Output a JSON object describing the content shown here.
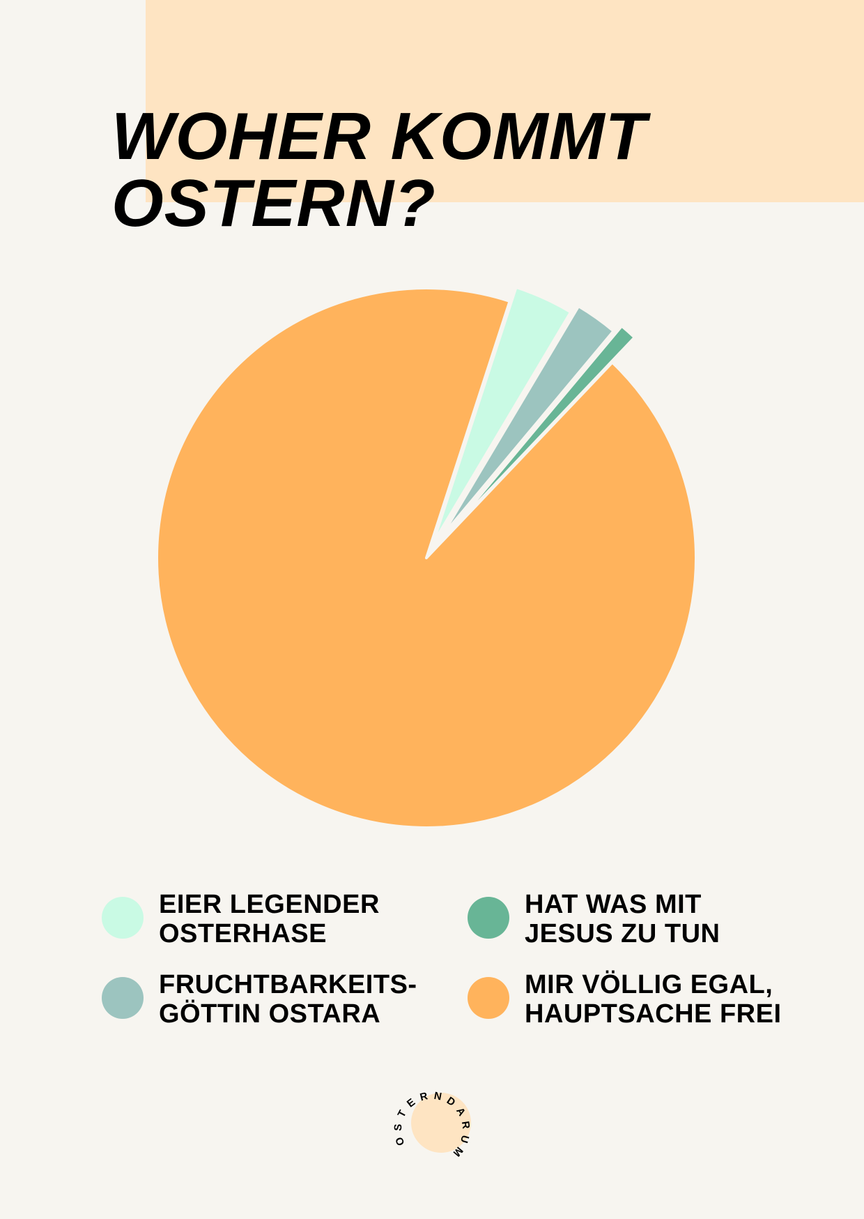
{
  "title": {
    "line1": "WOHER KOMMT",
    "line2": "OSTERN?"
  },
  "colors": {
    "background": "#f7f5f0",
    "accent": "#fee4c2",
    "mint": "#c9fae4",
    "sage": "#9cc4bf",
    "green": "#68b596",
    "orange": "#ffb35c"
  },
  "chart_data": {
    "type": "pie",
    "exploded": true,
    "slices": [
      {
        "label": "EIER LEGENDER\nOSTERHASE",
        "value": 3.5,
        "color": "#c9fae4"
      },
      {
        "label": "FRUCHTBARKEITS-\nGÖTTIN OSTARA",
        "value": 2.5,
        "color": "#9cc4bf"
      },
      {
        "label": "HAT WAS MIT\nJESUS ZU TUN",
        "value": 1.0,
        "color": "#68b596"
      },
      {
        "label": "MIR VÖLLIG EGAL,\nHAUPTSACHE FREI",
        "value": 91.5,
        "color": "#ffb35c"
      }
    ]
  },
  "legend": [
    {
      "text": "EIER LEGENDER\nOSTERHASE",
      "color": "#c9fae4"
    },
    {
      "text": "HAT WAS MIT\nJESUS ZU TUN",
      "color": "#68b596"
    },
    {
      "text": "FRUCHTBARKEITS-\nGÖTTIN OSTARA",
      "color": "#9cc4bf"
    },
    {
      "text": "MIR VÖLLIG EGAL,\nHAUPTSACHE FREI",
      "color": "#ffb35c"
    }
  ],
  "logo": {
    "text": "OSTERN DARUM"
  }
}
